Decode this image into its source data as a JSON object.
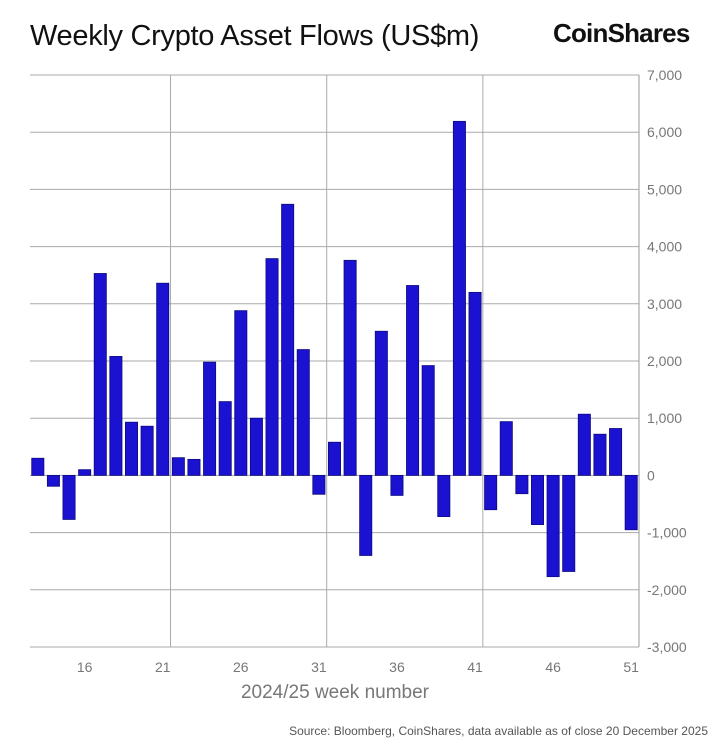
{
  "chart_data": {
    "type": "bar",
    "title": "Weekly Crypto Asset Flows (US$m)",
    "xlabel": "2024/25 week number",
    "ylabel": "",
    "ylim": [
      -3000,
      7000
    ],
    "yticks": [
      "7,000",
      "6,000",
      "5,000",
      "4,000",
      "3,000",
      "2,000",
      "1,000",
      "0",
      "-1,000",
      "-2,000",
      "-3,000"
    ],
    "ytick_values": [
      7000,
      6000,
      5000,
      4000,
      3000,
      2000,
      1000,
      0,
      -1000,
      -2000,
      -3000
    ],
    "xticks": [
      "16",
      "21",
      "26",
      "31",
      "36",
      "41",
      "46",
      "51"
    ],
    "xtick_values": [
      16,
      21,
      26,
      31,
      36,
      41,
      46,
      51
    ],
    "categories": [
      13,
      14,
      15,
      16,
      17,
      18,
      19,
      20,
      21,
      22,
      23,
      24,
      25,
      26,
      27,
      28,
      29,
      30,
      31,
      32,
      33,
      34,
      35,
      36,
      37,
      38,
      39,
      40,
      41,
      42,
      43,
      44,
      45,
      46,
      47,
      48,
      49,
      50,
      51
    ],
    "values": [
      300,
      -190,
      -770,
      100,
      3530,
      2080,
      930,
      860,
      3360,
      310,
      280,
      1980,
      1290,
      2880,
      1000,
      3790,
      4740,
      2200,
      -330,
      580,
      3760,
      -1400,
      2520,
      -350,
      3320,
      1920,
      -720,
      6190,
      3200,
      -600,
      940,
      -320,
      -860,
      -1770,
      -1680,
      1070,
      720,
      820,
      -950
    ],
    "bar_color": "#1a12d0",
    "grid": true,
    "y_axis_position": "right"
  },
  "brand": "CoinShares",
  "source": "Source: Bloomberg, CoinShares, data available as of close 20 December 2025"
}
